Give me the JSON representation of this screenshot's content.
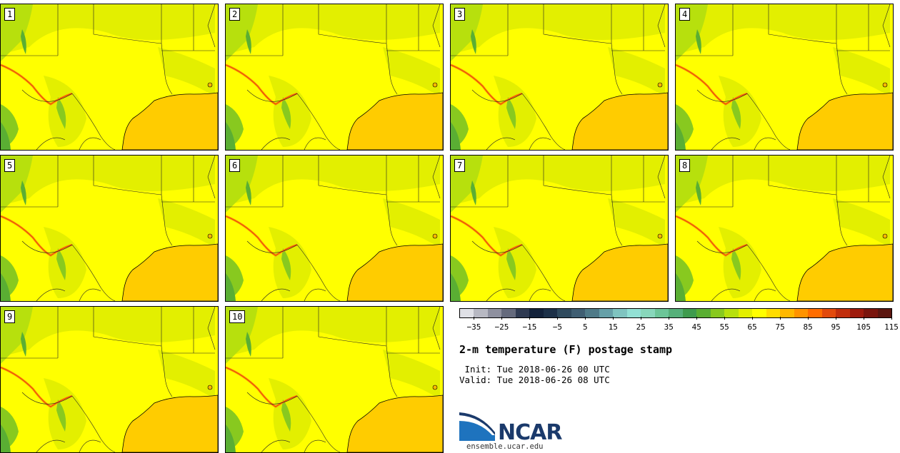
{
  "title": "2-m temperature (F) postage stamp",
  "init_text": " Init: Tue 2018-06-26 00 UTC",
  "valid_text": "Valid: Tue 2018-06-26 08 UTC",
  "members": [
    "1",
    "2",
    "3",
    "4",
    "5",
    "6",
    "7",
    "8",
    "9",
    "10"
  ],
  "colorbar": {
    "colors": [
      "#dfe0e6",
      "#b7b8c2",
      "#8e909f",
      "#656a7d",
      "#2f3a52",
      "#12213a",
      "#1c3048",
      "#2f4a5e",
      "#3f5e72",
      "#4f7a88",
      "#66a0a8",
      "#7fc4c0",
      "#92e0d4",
      "#88d7bb",
      "#6cc598",
      "#56b07a",
      "#3f9b4e",
      "#5aae33",
      "#88c91f",
      "#b7e00d",
      "#e3ef00",
      "#ffff00",
      "#ffdc00",
      "#ffb800",
      "#ff9300",
      "#ff6d00",
      "#e24a0c",
      "#c12e0c",
      "#9e1b0d",
      "#7a150d",
      "#5b1610"
    ],
    "tick_labels": [
      "−35",
      "−25",
      "−15",
      "−5",
      "5",
      "15",
      "25",
      "35",
      "45",
      "55",
      "65",
      "75",
      "85",
      "95",
      "105",
      "115"
    ]
  },
  "logo": {
    "name": "NCAR",
    "url": "ensemble.ucar.edu"
  }
}
